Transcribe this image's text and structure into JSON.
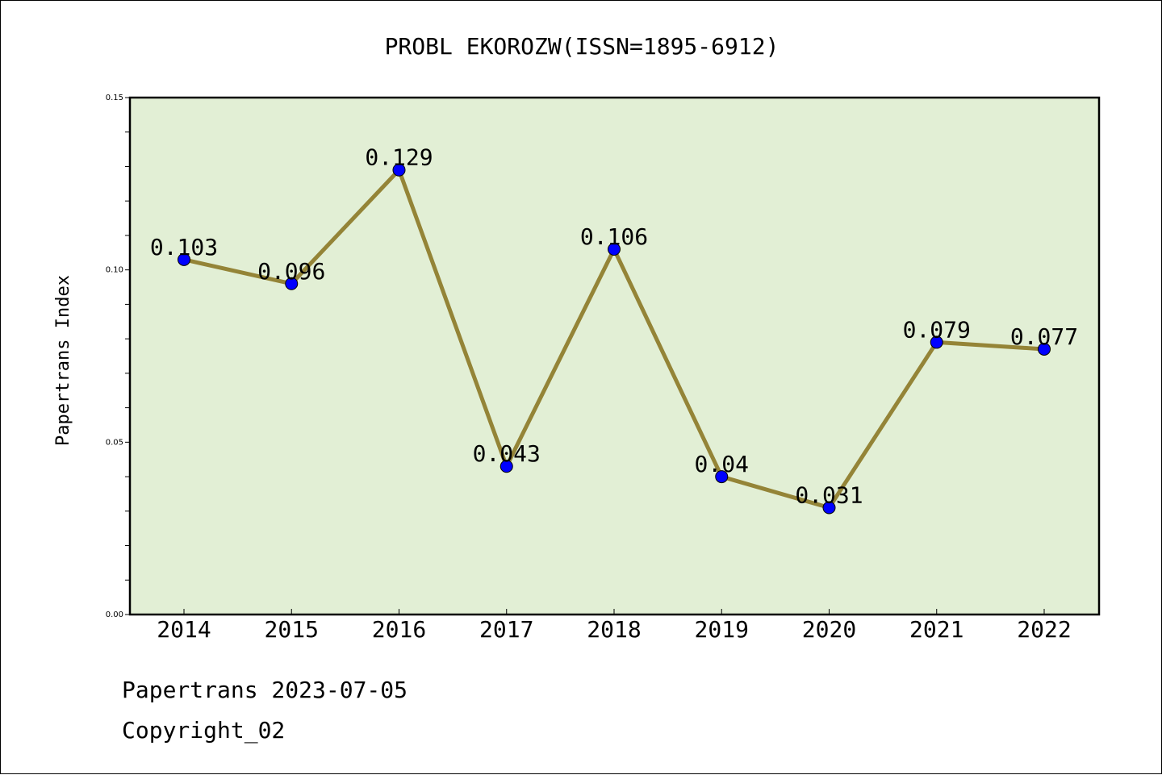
{
  "chart_data": {
    "type": "line",
    "title": "PROBL EKOROZW(ISSN=1895-6912)",
    "xlabel": "",
    "ylabel": "Papertrans Index",
    "categories": [
      "2014",
      "2015",
      "2016",
      "2017",
      "2018",
      "2019",
      "2020",
      "2021",
      "2022"
    ],
    "values": [
      0.103,
      0.096,
      0.129,
      0.043,
      0.106,
      0.04,
      0.031,
      0.079,
      0.077
    ],
    "data_labels": [
      "0.103",
      "0.096",
      "0.129",
      "0.043",
      "0.106",
      "0.04",
      "0.031",
      "0.079",
      "0.077"
    ],
    "ylim": [
      0,
      0.15
    ],
    "yticks": [
      0.0,
      0.05,
      0.1,
      0.15
    ],
    "ytick_labels": [
      "0.00",
      "0.05",
      "0.10",
      "0.15"
    ],
    "grid": false,
    "line_color": "#948437",
    "marker_color": "#0000ff",
    "plot_background": "#e2efd5"
  },
  "footer": {
    "line1": "Papertrans 2023-07-05",
    "line2": "Copyright_02"
  }
}
